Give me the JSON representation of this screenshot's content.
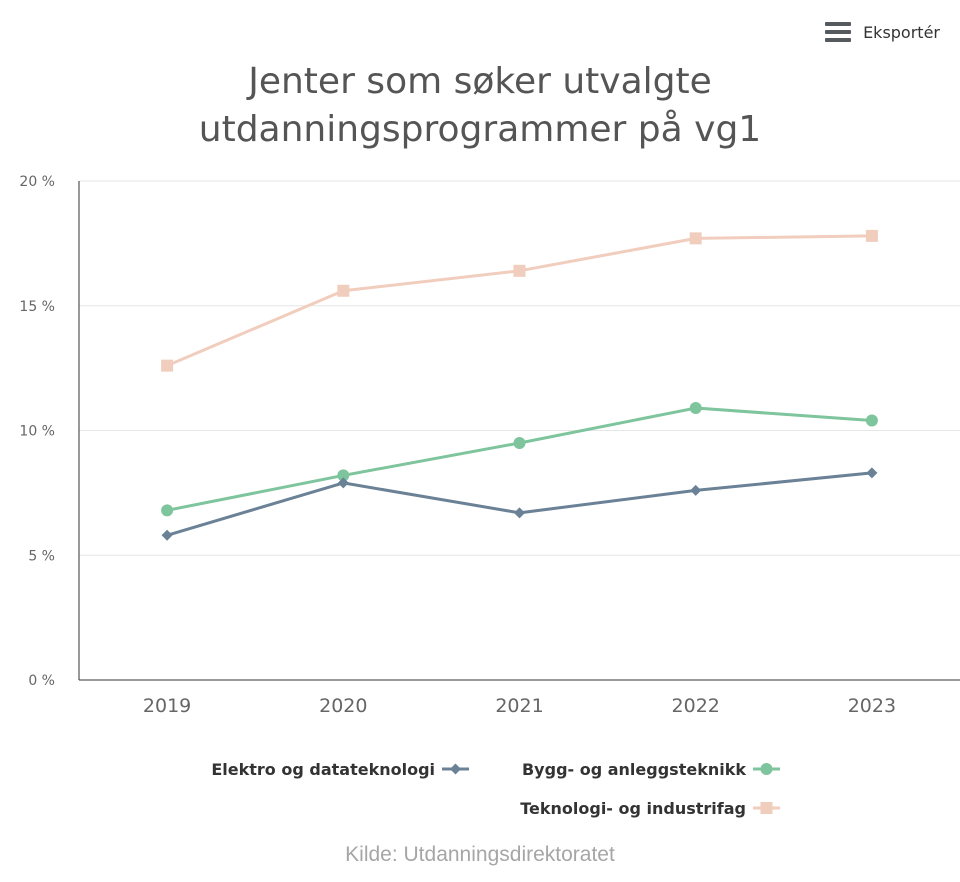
{
  "export_label": "Eksportér",
  "source": "Kilde: Utdanningsdirektoratet",
  "chart_data": {
    "type": "line",
    "title_lines": [
      "Jenter som søker utvalgte",
      "utdanningsprogrammer på vg1"
    ],
    "x": [
      "2019",
      "2020",
      "2021",
      "2022",
      "2023"
    ],
    "ylim": [
      0,
      20
    ],
    "yticks": [
      {
        "value": 0,
        "label": "0 %"
      },
      {
        "value": 5,
        "label": "5 %"
      },
      {
        "value": 10,
        "label": "10 %"
      },
      {
        "value": 15,
        "label": "15 %"
      },
      {
        "value": 20,
        "label": "20 %"
      }
    ],
    "grid": true,
    "legend_position": "bottom",
    "series": [
      {
        "name": "Elektro og datateknologi",
        "color": "#6a8196",
        "marker": "diamond",
        "values": [
          5.8,
          7.9,
          6.7,
          7.6,
          8.3
        ]
      },
      {
        "name": "Bygg- og anleggsteknikk",
        "color": "#7ec49c",
        "marker": "circle",
        "values": [
          6.8,
          8.2,
          9.5,
          10.9,
          10.4
        ]
      },
      {
        "name": "Teknologi- og industrifag",
        "color": "#f1cdbd",
        "marker": "square",
        "values": [
          12.6,
          15.6,
          16.4,
          17.7,
          17.8
        ]
      }
    ]
  }
}
